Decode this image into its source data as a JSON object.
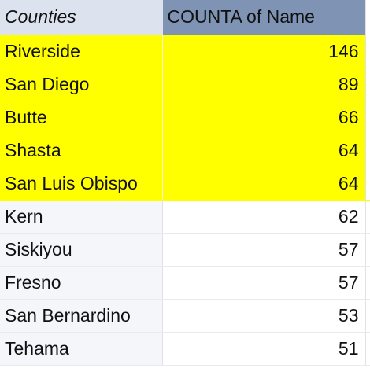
{
  "pivot": {
    "header": {
      "row_label": "Counties",
      "value_label": "COUNTA of Name"
    },
    "highlight_color": "#ffff00",
    "rows": [
      {
        "name": "Riverside",
        "count": "146",
        "highlighted": true
      },
      {
        "name": "San Diego",
        "count": "89",
        "highlighted": true
      },
      {
        "name": "Butte",
        "count": "66",
        "highlighted": true
      },
      {
        "name": "Shasta",
        "count": "64",
        "highlighted": true
      },
      {
        "name": "San Luis Obispo",
        "count": "64",
        "highlighted": true
      },
      {
        "name": "Kern",
        "count": "62",
        "highlighted": false
      },
      {
        "name": "Siskiyou",
        "count": "57",
        "highlighted": false
      },
      {
        "name": "Fresno",
        "count": "57",
        "highlighted": false
      },
      {
        "name": "San Bernardino",
        "count": "53",
        "highlighted": false
      },
      {
        "name": "Tehama",
        "count": "51",
        "highlighted": false
      }
    ]
  }
}
